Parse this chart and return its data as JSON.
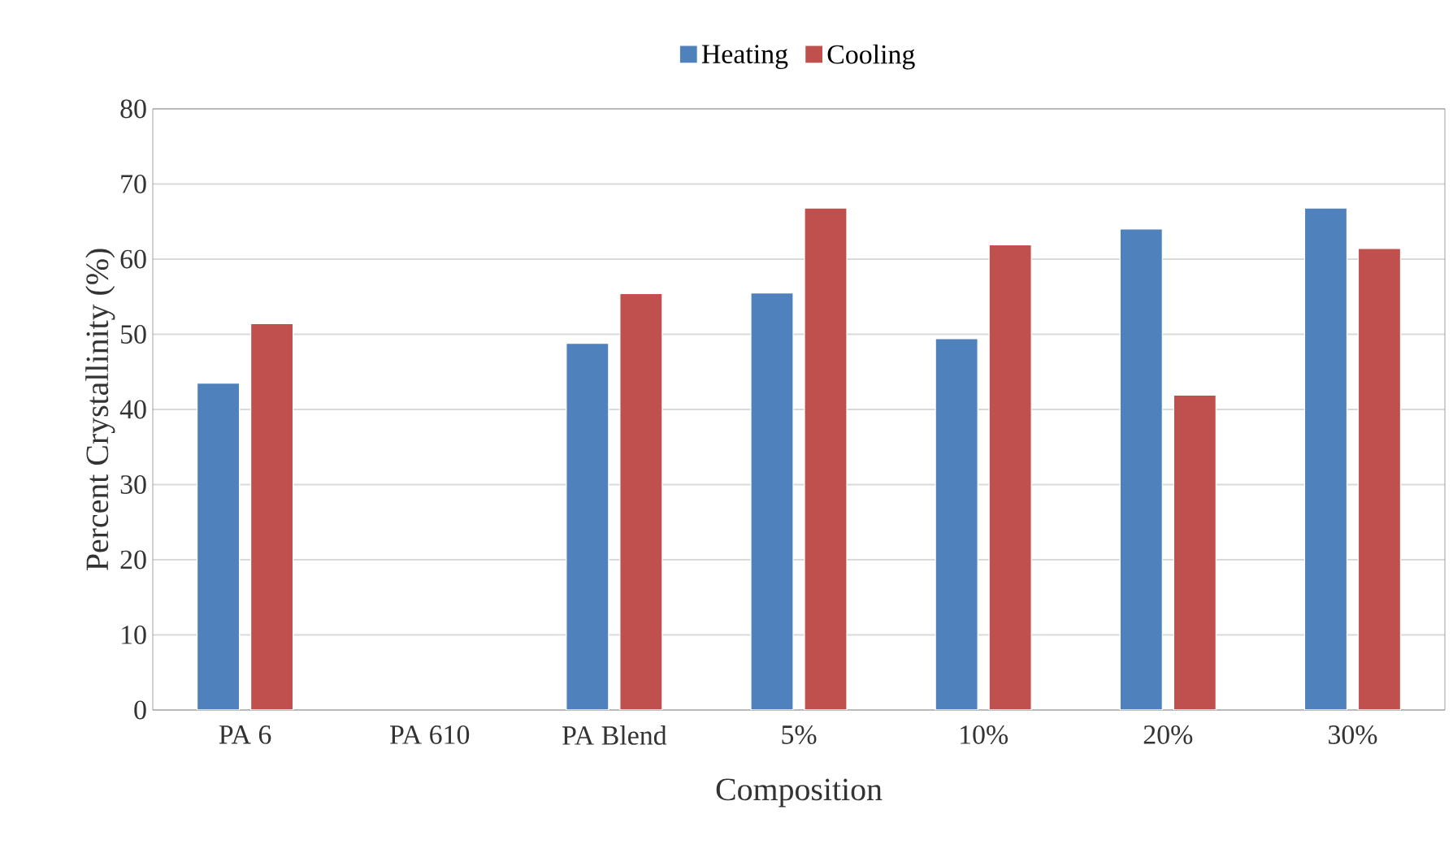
{
  "chart_data": {
    "type": "bar",
    "xlabel": "Composition",
    "ylabel": "Percent Crystallinity (%)",
    "categories": [
      "PA 6",
      "PA 610",
      "PA Blend",
      "5%",
      "10%",
      "20%",
      "30%"
    ],
    "series": [
      {
        "name": "Heating",
        "color": "#4f81bd",
        "values": [
          43.5,
          null,
          48.8,
          55.5,
          49.4,
          64.0,
          66.8
        ]
      },
      {
        "name": "Cooling",
        "color": "#c0504d",
        "values": [
          51.4,
          null,
          55.4,
          66.8,
          61.9,
          41.9,
          61.4
        ]
      }
    ],
    "ylim": [
      0,
      80
    ],
    "yticks": [
      0,
      10,
      20,
      30,
      40,
      50,
      60,
      70,
      80
    ],
    "grid": "y",
    "legend": "top"
  }
}
